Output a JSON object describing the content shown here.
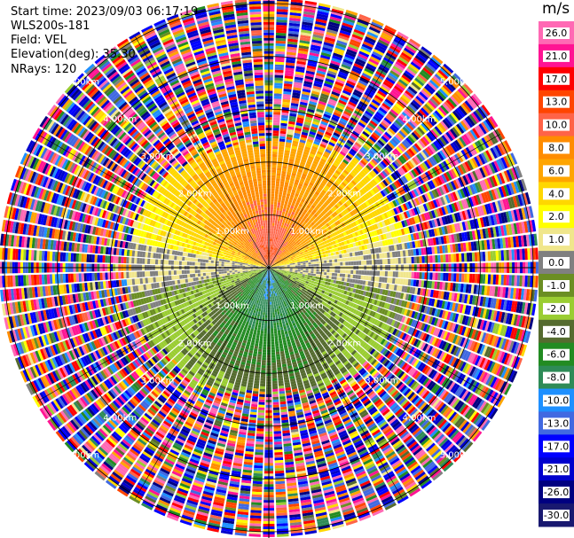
{
  "header": {
    "start_time": "Start time: 2023/09/03 06:17:19",
    "instrument": "WLS200s-181",
    "field": "Field: VEL",
    "elevation": "Elevation(deg): 35.30",
    "nrays": "NRays: 120"
  },
  "colorbar": {
    "title": "m/s",
    "levels": [
      "26.0",
      "21.0",
      "17.0",
      "13.0",
      "10.0",
      "8.0",
      "6.0",
      "4.0",
      "2.0",
      "1.0",
      "0.0",
      "-1.0",
      "-2.0",
      "-4.0",
      "-6.0",
      "-8.0",
      "-10.0",
      "-13.0",
      "-17.0",
      "-21.0",
      "-26.0",
      "-30.0"
    ],
    "colors": [
      "#ff69b4",
      "#ff1493",
      "#ff0000",
      "#ff4500",
      "#ff6347",
      "#ff8c00",
      "#ffa500",
      "#ffd700",
      "#ffff00",
      "#f0e68c",
      "#808080",
      "#6b8e23",
      "#9acd32",
      "#556b2f",
      "#228b22",
      "#2e8b57",
      "#1e90ff",
      "#4169e1",
      "#0000ff",
      "#0000cd",
      "#000080",
      "#191970"
    ]
  },
  "chart_data": {
    "type": "heatmap",
    "projection": "polar-ppi",
    "field": "VEL",
    "units": "m/s",
    "nrays": 120,
    "range_rings_km": [
      1.0,
      2.0,
      3.0,
      4.0,
      5.0
    ],
    "ring_labels": [
      "1.00km",
      "2.00km",
      "3.00km",
      "4.00km",
      "5.00km"
    ],
    "velocity_structure": [
      {
        "sector": "north",
        "range_km": [
          0,
          2.4
        ],
        "values_ms": [
          6,
          13
        ]
      },
      {
        "sector": "north",
        "range_km": [
          0.5,
          1.3
        ],
        "values_ms": [
          2,
          4
        ]
      },
      {
        "sector": "east-west band",
        "range_km": [
          0,
          2.0
        ],
        "values_ms": [
          -1,
          1
        ]
      },
      {
        "sector": "south",
        "range_km": [
          0,
          2.4
        ],
        "values_ms": [
          -13,
          -6
        ]
      },
      {
        "sector": "all",
        "range_km": [
          2.4,
          5.0
        ],
        "values_ms": [
          -30,
          26
        ],
        "note": "noise"
      }
    ]
  }
}
